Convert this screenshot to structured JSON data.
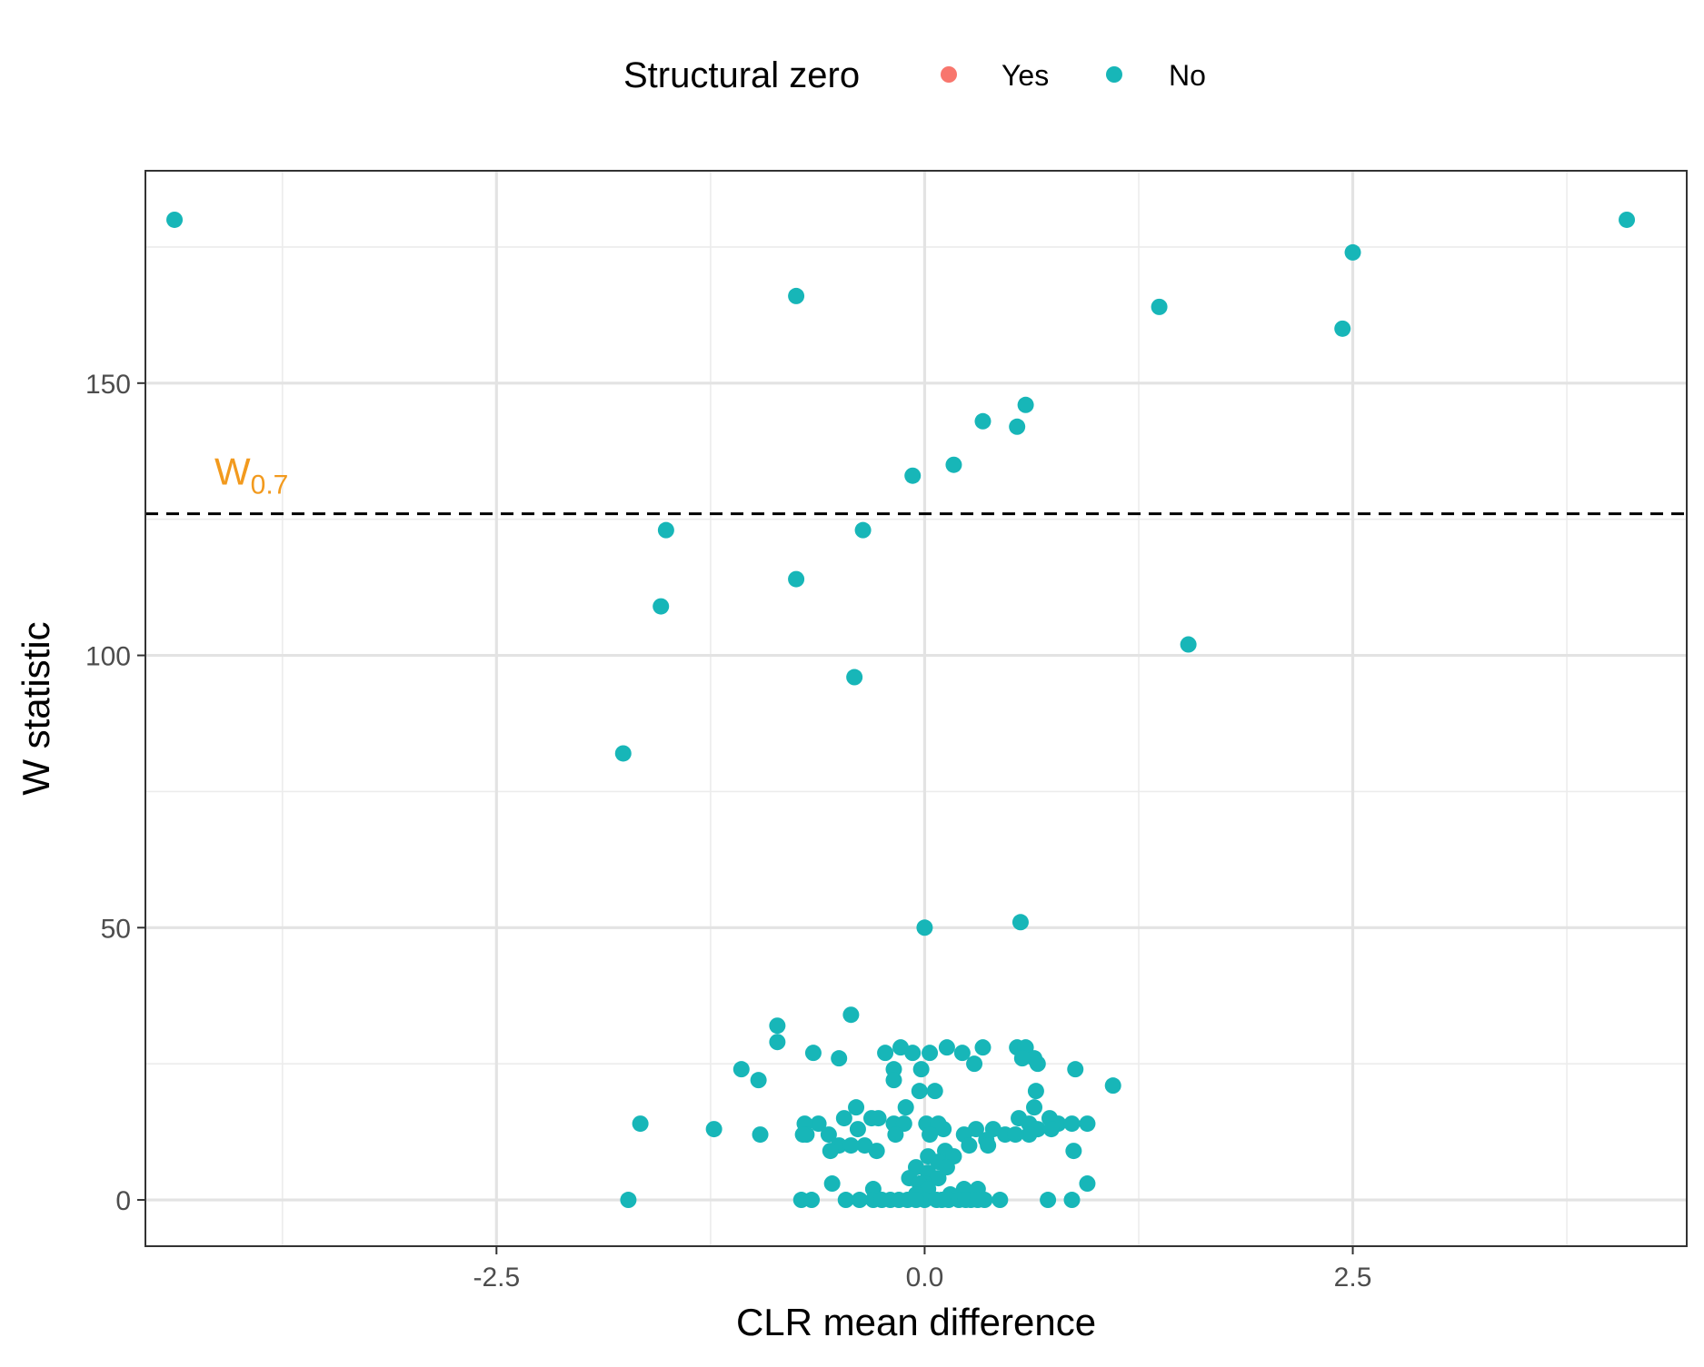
{
  "chart_data": {
    "type": "scatter",
    "title": "",
    "xlabel": "CLR mean difference",
    "ylabel": "W statistic",
    "xlim": [
      -4.55,
      4.45
    ],
    "ylim": [
      -8.5,
      189
    ],
    "x_ticks": [
      -2.5,
      0.0,
      2.5
    ],
    "x_tick_labels": [
      "-2.5",
      "0.0",
      "2.5"
    ],
    "x_minor_gridlines": [
      -3.75,
      -1.25,
      1.25,
      3.75
    ],
    "y_ticks": [
      0,
      50,
      100,
      150
    ],
    "y_tick_labels": [
      "0",
      "50",
      "100",
      "150"
    ],
    "y_minor_gridlines": [
      25,
      75,
      125,
      175
    ],
    "grid": true,
    "legend": {
      "title": "Structural zero",
      "placement": "top",
      "entries": [
        {
          "label": "Yes",
          "color": "#F8766D"
        },
        {
          "label": "No",
          "color": "#17B6B8"
        }
      ]
    },
    "threshold": {
      "y": 126,
      "style": "dashed",
      "label_main": "W",
      "label_sub": "0.7",
      "label_color": "#F29A1E"
    },
    "series": [
      {
        "name": "No",
        "color": "#17B6B8",
        "points": [
          [
            -4.38,
            180
          ],
          [
            4.1,
            180
          ],
          [
            2.5,
            174
          ],
          [
            -0.75,
            166
          ],
          [
            1.37,
            164
          ],
          [
            2.44,
            160
          ],
          [
            0.59,
            146
          ],
          [
            0.34,
            143
          ],
          [
            0.54,
            142
          ],
          [
            0.17,
            135
          ],
          [
            -0.07,
            133
          ],
          [
            -1.51,
            123
          ],
          [
            -0.36,
            123
          ],
          [
            -0.75,
            114
          ],
          [
            -1.54,
            109
          ],
          [
            1.54,
            102
          ],
          [
            -0.41,
            96
          ],
          [
            -1.76,
            82
          ],
          [
            0.56,
            51
          ],
          [
            0.0,
            50
          ],
          [
            -0.43,
            34
          ],
          [
            -0.86,
            32
          ],
          [
            -0.86,
            29
          ],
          [
            0.54,
            28
          ],
          [
            0.59,
            28
          ],
          [
            -0.14,
            28
          ],
          [
            0.13,
            28
          ],
          [
            0.34,
            28
          ],
          [
            0.22,
            27
          ],
          [
            -0.07,
            27
          ],
          [
            -0.23,
            27
          ],
          [
            -0.65,
            27
          ],
          [
            0.64,
            26
          ],
          [
            0.03,
            27
          ],
          [
            -0.5,
            26
          ],
          [
            0.29,
            25
          ],
          [
            0.57,
            26
          ],
          [
            0.66,
            25
          ],
          [
            -0.18,
            24
          ],
          [
            -0.02,
            24
          ],
          [
            -1.07,
            24
          ],
          [
            0.88,
            24
          ],
          [
            -0.18,
            22
          ],
          [
            -0.97,
            22
          ],
          [
            1.1,
            21
          ],
          [
            -0.03,
            20
          ],
          [
            0.06,
            20
          ],
          [
            0.65,
            20
          ],
          [
            -0.11,
            17
          ],
          [
            0.64,
            17
          ],
          [
            -0.4,
            17
          ],
          [
            -0.47,
            15
          ],
          [
            -0.31,
            15
          ],
          [
            -0.27,
            15
          ],
          [
            0.55,
            15
          ],
          [
            0.61,
            14
          ],
          [
            0.73,
            15
          ],
          [
            0.78,
            14
          ],
          [
            0.86,
            14
          ],
          [
            -0.18,
            14
          ],
          [
            -0.12,
            14
          ],
          [
            0.01,
            14
          ],
          [
            0.08,
            14
          ],
          [
            -0.62,
            14
          ],
          [
            -0.7,
            14
          ],
          [
            -1.66,
            14
          ],
          [
            0.95,
            14
          ],
          [
            -0.39,
            13
          ],
          [
            0.3,
            13
          ],
          [
            0.4,
            13
          ],
          [
            -1.23,
            13
          ],
          [
            0.66,
            13
          ],
          [
            0.74,
            13
          ],
          [
            0.11,
            13
          ],
          [
            0.23,
            12
          ],
          [
            -0.56,
            12
          ],
          [
            -0.69,
            12
          ],
          [
            -0.96,
            12
          ],
          [
            -0.71,
            12
          ],
          [
            -0.17,
            12
          ],
          [
            0.03,
            12
          ],
          [
            0.47,
            12
          ],
          [
            0.61,
            12
          ],
          [
            0.53,
            12
          ],
          [
            0.36,
            11
          ],
          [
            0.26,
            10
          ],
          [
            -0.5,
            10
          ],
          [
            -0.35,
            10
          ],
          [
            0.37,
            10
          ],
          [
            -0.43,
            10
          ],
          [
            0.12,
            9
          ],
          [
            -0.55,
            9
          ],
          [
            0.87,
            9
          ],
          [
            -0.28,
            9
          ],
          [
            0.02,
            8
          ],
          [
            0.17,
            8
          ],
          [
            0.08,
            7
          ],
          [
            0.13,
            6
          ],
          [
            -0.05,
            6
          ],
          [
            0.02,
            5
          ],
          [
            -0.09,
            4
          ],
          [
            0.08,
            4
          ],
          [
            0.0,
            3
          ],
          [
            -0.54,
            3
          ],
          [
            -0.03,
            3
          ],
          [
            0.95,
            3
          ],
          [
            0.02,
            2
          ],
          [
            -0.3,
            2
          ],
          [
            0.23,
            2
          ],
          [
            0.31,
            2
          ],
          [
            -0.05,
            1
          ],
          [
            0.15,
            1
          ],
          [
            -1.73,
            0
          ],
          [
            -0.72,
            0
          ],
          [
            -0.66,
            0
          ],
          [
            -0.46,
            0
          ],
          [
            -0.3,
            0
          ],
          [
            -0.2,
            0
          ],
          [
            -0.1,
            0
          ],
          [
            0.0,
            0
          ],
          [
            0.07,
            0
          ],
          [
            0.14,
            0
          ],
          [
            0.2,
            0
          ],
          [
            0.27,
            0
          ],
          [
            0.35,
            0
          ],
          [
            0.44,
            0
          ],
          [
            0.72,
            0
          ],
          [
            0.86,
            0
          ],
          [
            -0.38,
            0
          ],
          [
            -0.25,
            0
          ],
          [
            -0.15,
            0
          ],
          [
            -0.05,
            0
          ],
          [
            0.1,
            0
          ],
          [
            0.24,
            0
          ],
          [
            0.31,
            0
          ]
        ]
      }
    ]
  }
}
